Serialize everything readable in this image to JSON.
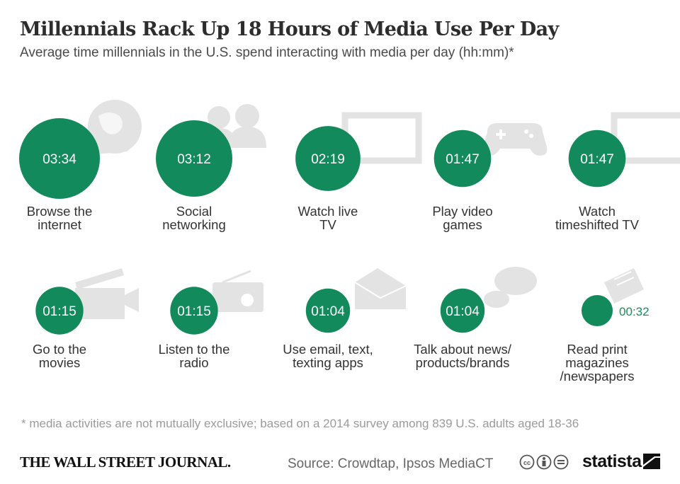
{
  "title": "Millennials Rack Up 18 Hours of Media Use Per Day",
  "subtitle": "Average time millennials in the U.S. spend interacting with media per day (hh:mm)*",
  "colors": {
    "bubble": "#138a5c",
    "icon": "#e3e3e3",
    "outside_value": "#1a8c5e"
  },
  "chart_data": {
    "type": "bubble",
    "unit": "hh:mm",
    "items": [
      {
        "label_lines": [
          "Browse the",
          "internet"
        ],
        "value": "03:34",
        "minutes": 214,
        "icon": "globe-icon"
      },
      {
        "label_lines": [
          "Social",
          "networking"
        ],
        "value": "03:12",
        "minutes": 192,
        "icon": "people-icon"
      },
      {
        "label_lines": [
          "Watch live",
          "TV"
        ],
        "value": "02:19",
        "minutes": 139,
        "icon": "tv-icon"
      },
      {
        "label_lines": [
          "Play video",
          "games"
        ],
        "value": "01:47",
        "minutes": 107,
        "icon": "gamepad-icon"
      },
      {
        "label_lines": [
          "Watch",
          "timeshifted TV"
        ],
        "value": "01:47",
        "minutes": 107,
        "icon": "tv-icon"
      },
      {
        "label_lines": [
          "Go to the",
          "movies"
        ],
        "value": "01:15",
        "minutes": 75,
        "icon": "clapperboard-icon"
      },
      {
        "label_lines": [
          "Listen to the",
          "radio"
        ],
        "value": "01:15",
        "minutes": 75,
        "icon": "radio-icon"
      },
      {
        "label_lines": [
          "Use email, text,",
          "texting apps"
        ],
        "value": "01:04",
        "minutes": 64,
        "icon": "envelope-icon"
      },
      {
        "label_lines": [
          "Talk about news/",
          "products/brands"
        ],
        "value": "01:04",
        "minutes": 64,
        "icon": "speech-bubble-icon"
      },
      {
        "label_lines": [
          "Read print",
          "magazines",
          "/newspapers"
        ],
        "value": "00:32",
        "minutes": 32,
        "icon": "newspaper-icon"
      }
    ]
  },
  "footnote": "* media activities are not mutually exclusive; based on a 2014 survey among 839 U.S. adults aged 18-36",
  "publisher": "THE WALL STREET JOURNAL.",
  "source": "Source: Crowdtap, Ipsos MediaCT",
  "brand": "statista",
  "license_icons": [
    "cc-icon",
    "attribution-icon",
    "no-derivatives-icon"
  ]
}
